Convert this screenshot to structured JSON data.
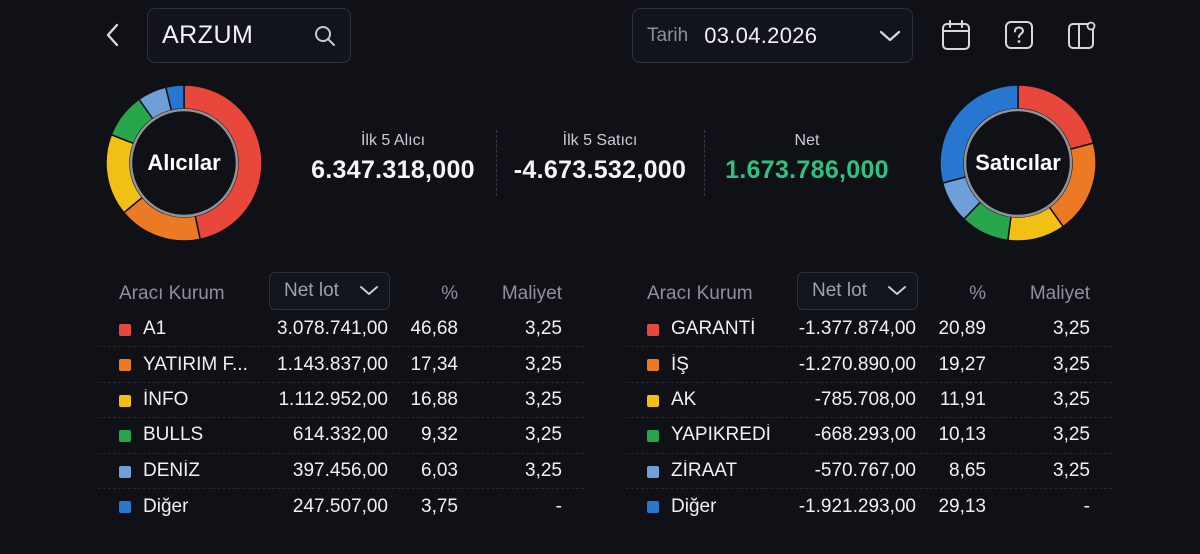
{
  "header": {
    "search_value": "ARZUM",
    "date_label": "Tarih",
    "date_value": "03.04.2026"
  },
  "icons": {
    "back": "chevron-left-icon",
    "search": "search-icon",
    "date_dropdown": "chevron-down-icon",
    "calendar": "calendar-icon",
    "help": "help-icon",
    "layout": "layout-settings-icon"
  },
  "summary": {
    "buyers_title": "İlk 5 Alıcı",
    "buyers_value": "6.347.318,000",
    "sellers_title": "İlk 5 Satıcı",
    "sellers_value": "-4.673.532,000",
    "net_title": "Net",
    "net_value": "1.673.786,000",
    "net_color": "#2ec27e"
  },
  "donut_buyers": {
    "label": "Alıcılar"
  },
  "donut_sellers": {
    "label": "Satıcılar"
  },
  "colors": [
    "#e8473b",
    "#ec7a24",
    "#f2c014",
    "#27a64c",
    "#6e9fd8",
    "#2776cf"
  ],
  "buyers_table": {
    "col_broker": "Aracı Kurum",
    "col_netlot": "Net lot",
    "col_pct": "%",
    "col_cost": "Maliyet",
    "rows": [
      {
        "name": "A1",
        "lot": "3.078.741,00",
        "pct": "46,68",
        "cost": "3,25"
      },
      {
        "name": "YATIRIM F...",
        "lot": "1.143.837,00",
        "pct": "17,34",
        "cost": "3,25"
      },
      {
        "name": "İNFO",
        "lot": "1.112.952,00",
        "pct": "16,88",
        "cost": "3,25"
      },
      {
        "name": "BULLS",
        "lot": "614.332,00",
        "pct": "9,32",
        "cost": "3,25"
      },
      {
        "name": "DENİZ",
        "lot": "397.456,00",
        "pct": "6,03",
        "cost": "3,25"
      },
      {
        "name": "Diğer",
        "lot": "247.507,00",
        "pct": "3,75",
        "cost": "-"
      }
    ]
  },
  "sellers_table": {
    "col_broker": "Aracı Kurum",
    "col_netlot": "Net lot",
    "col_pct": "%",
    "col_cost": "Maliyet",
    "rows": [
      {
        "name": "GARANTİ",
        "lot": "-1.377.874,00",
        "pct": "20,89",
        "cost": "3,25"
      },
      {
        "name": "İŞ",
        "lot": "-1.270.890,00",
        "pct": "19,27",
        "cost": "3,25"
      },
      {
        "name": "AK",
        "lot": "-785.708,00",
        "pct": "11,91",
        "cost": "3,25"
      },
      {
        "name": "YAPIKREDİ",
        "lot": "-668.293,00",
        "pct": "10,13",
        "cost": "3,25"
      },
      {
        "name": "ZİRAAT",
        "lot": "-570.767,00",
        "pct": "8,65",
        "cost": "3,25"
      },
      {
        "name": "Diğer",
        "lot": "-1.921.293,00",
        "pct": "29,13",
        "cost": "-"
      }
    ]
  }
}
